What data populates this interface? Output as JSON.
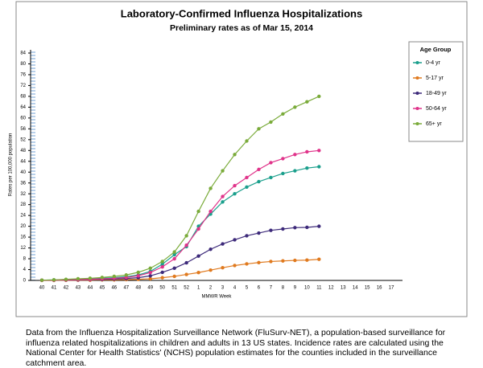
{
  "chart_data": {
    "type": "line",
    "title": "Laboratory-Confirmed Influenza Hospitalizations",
    "subtitle": "Preliminary rates as of Mar 15, 2014",
    "x_label": "MMWR Week",
    "y_label": "Rates per 100,000 population",
    "legend_title": "Age Group",
    "legend_position": "right",
    "categories": [
      "40",
      "41",
      "42",
      "43",
      "44",
      "45",
      "46",
      "47",
      "48",
      "49",
      "50",
      "51",
      "52",
      "1",
      "2",
      "3",
      "4",
      "5",
      "6",
      "7",
      "8",
      "9",
      "10",
      "11",
      "12",
      "13",
      "14",
      "15",
      "16",
      "17"
    ],
    "ylim": [
      0,
      84
    ],
    "yticks": [
      0,
      4,
      8,
      12,
      16,
      20,
      24,
      28,
      32,
      36,
      40,
      44,
      48,
      52,
      56,
      60,
      64,
      68,
      72,
      76,
      80,
      84
    ],
    "series": [
      {
        "name": "0-4 yr",
        "color": "#1a9f8c",
        "values": [
          0.1,
          0.2,
          0.3,
          0.4,
          0.6,
          0.8,
          1.0,
          1.4,
          2.0,
          3.3,
          6,
          9.5,
          12.5,
          20,
          24.5,
          29,
          32,
          34.5,
          36.5,
          38,
          39.5,
          40.5,
          41.5,
          42,
          null,
          null,
          null,
          null,
          null,
          null
        ]
      },
      {
        "name": "5-17 yr",
        "color": "#e07a1f",
        "values": [
          0,
          0,
          0.05,
          0.1,
          0.1,
          0.2,
          0.2,
          0.3,
          0.4,
          0.6,
          1,
          1.5,
          2.2,
          2.9,
          3.8,
          4.7,
          5.5,
          6.1,
          6.6,
          7,
          7.2,
          7.4,
          7.5,
          7.8,
          null,
          null,
          null,
          null,
          null,
          null
        ]
      },
      {
        "name": "18-49 yr",
        "color": "#3d2a7a",
        "values": [
          0.05,
          0.1,
          0.15,
          0.2,
          0.3,
          0.4,
          0.5,
          0.7,
          1.0,
          1.7,
          3,
          4.5,
          6.5,
          9,
          11.5,
          13.5,
          15,
          16.5,
          17.5,
          18.5,
          19,
          19.5,
          19.6,
          20,
          null,
          null,
          null,
          null,
          null,
          null
        ]
      },
      {
        "name": "50-64 yr",
        "color": "#e0338a",
        "values": [
          0.1,
          0.1,
          0.2,
          0.3,
          0.4,
          0.6,
          0.8,
          1.1,
          1.7,
          2.9,
          5,
          8,
          13,
          19,
          25.5,
          31,
          35,
          38,
          41,
          43.5,
          45,
          46.5,
          47.5,
          48,
          null,
          null,
          null,
          null,
          null,
          null
        ]
      },
      {
        "name": "65+ yr",
        "color": "#7aab3a",
        "values": [
          0.1,
          0.2,
          0.4,
          0.6,
          0.8,
          1.1,
          1.5,
          2.0,
          3.0,
          4.5,
          7,
          10.5,
          16.5,
          25.5,
          34,
          40.5,
          46.5,
          51.5,
          56,
          58.5,
          61.5,
          64,
          66,
          68,
          null,
          null,
          null,
          null,
          null,
          null
        ]
      }
    ]
  },
  "caption": "Data from the Influenza Hospitalization Surveillance Network (FluSurv-NET),  a population-based surveillance for influenza related hospitalizations in children and adults in 13 US states. Incidence rates are calculated using the National Center for Health Statistics' (NCHS) population estimates for the counties included in the surveillance catchment area."
}
